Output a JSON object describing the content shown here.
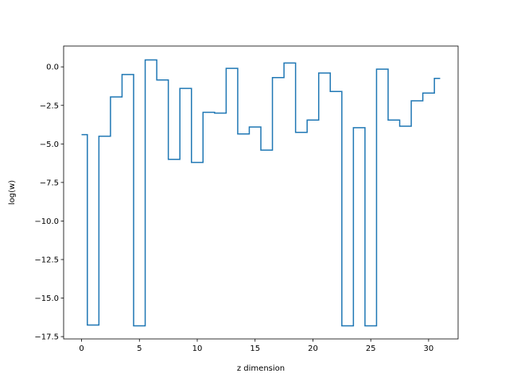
{
  "chart_data": {
    "type": "line",
    "drawstyle": "steps-mid",
    "title": "",
    "xlabel": "z dimension",
    "ylabel": "log(w)",
    "xlim": [
      -1.55,
      32.55
    ],
    "ylim": [
      -17.65,
      1.35
    ],
    "xticks": [
      0,
      5,
      10,
      15,
      20,
      25,
      30
    ],
    "xtick_labels": [
      "0",
      "5",
      "10",
      "15",
      "20",
      "25",
      "30"
    ],
    "yticks": [
      0.0,
      -2.5,
      -5.0,
      -7.5,
      -10.0,
      -12.5,
      -15.0,
      -17.5
    ],
    "ytick_labels": [
      "0.0",
      "−2.5",
      "−5.0",
      "−7.5",
      "−10.0",
      "−12.5",
      "−15.0",
      "−17.5"
    ],
    "grid": false,
    "color": "#1f77b4",
    "x": [
      0,
      1,
      2,
      3,
      4,
      5,
      6,
      7,
      8,
      9,
      10,
      11,
      12,
      13,
      14,
      15,
      16,
      17,
      18,
      19,
      20,
      21,
      22,
      23,
      24,
      25,
      26,
      27,
      28,
      29,
      30,
      31
    ],
    "y": [
      -4.4,
      -16.75,
      -4.5,
      -1.95,
      -0.5,
      -16.8,
      0.45,
      -0.85,
      -6.0,
      -1.4,
      -6.2,
      -2.95,
      -3.0,
      -0.1,
      -4.35,
      -3.9,
      -5.4,
      -0.7,
      0.25,
      -4.25,
      -3.45,
      -0.4,
      -1.6,
      -16.8,
      -3.95,
      -16.8,
      -0.15,
      -3.45,
      -3.85,
      -2.2,
      -1.7,
      -0.75
    ]
  }
}
